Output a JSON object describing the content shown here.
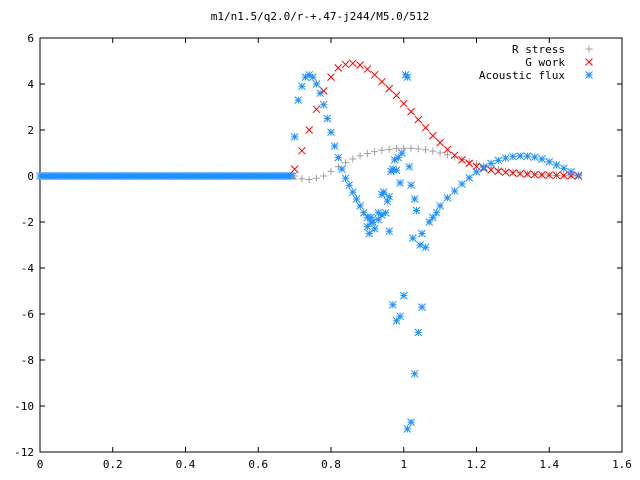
{
  "chart_data": {
    "type": "scatter",
    "title": "m1/n1.5/q2.0/r-+.47-j244/M5.0/512",
    "xlabel": "",
    "ylabel": "",
    "xlim": [
      0,
      1.6
    ],
    "ylim": [
      -12,
      6
    ],
    "x_ticks": [
      0,
      0.2,
      0.4,
      0.6,
      0.8,
      1,
      1.2,
      1.4,
      1.6
    ],
    "y_ticks": [
      -12,
      -10,
      -8,
      -6,
      -4,
      -2,
      0,
      2,
      4,
      6
    ],
    "x_tick_labels": [
      "0",
      "0.2",
      "0.4",
      "0.6",
      "0.8",
      "1",
      "1.2",
      "1.4",
      "1.6"
    ],
    "y_tick_labels": [
      "-12",
      "-10",
      "-8",
      "-6",
      "-4",
      "-2",
      "0",
      "2",
      "4",
      "6"
    ],
    "grid": false,
    "legend": "top-right",
    "series": [
      {
        "name": "R stress",
        "marker": "plus",
        "color": "#a0a0a0",
        "x": [
          0.7,
          0.72,
          0.74,
          0.76,
          0.78,
          0.8,
          0.82,
          0.84,
          0.86,
          0.88,
          0.9,
          0.92,
          0.94,
          0.96,
          0.98,
          1.0,
          1.02,
          1.04,
          1.06,
          1.08,
          1.1,
          1.12,
          1.14,
          1.16,
          1.18,
          1.2,
          1.22,
          1.24,
          1.26,
          1.28,
          1.3,
          1.32,
          1.34,
          1.36,
          1.38,
          1.4,
          1.42,
          1.44,
          1.46,
          1.48
        ],
        "y": [
          0.0,
          -0.12,
          -0.15,
          -0.1,
          0.0,
          0.2,
          0.4,
          0.58,
          0.74,
          0.88,
          0.98,
          1.06,
          1.12,
          1.16,
          1.19,
          1.2,
          1.2,
          1.18,
          1.14,
          1.08,
          1.0,
          0.92,
          0.82,
          0.72,
          0.62,
          0.52,
          0.44,
          0.36,
          0.28,
          0.22,
          0.17,
          0.13,
          0.1,
          0.07,
          0.05,
          0.03,
          0.02,
          0.01,
          0.0,
          0.0
        ]
      },
      {
        "name": "G work",
        "marker": "cross",
        "color": "#ff0000",
        "x": [
          0.7,
          0.72,
          0.74,
          0.76,
          0.78,
          0.8,
          0.82,
          0.84,
          0.86,
          0.88,
          0.9,
          0.92,
          0.94,
          0.96,
          0.98,
          1.0,
          1.02,
          1.04,
          1.06,
          1.08,
          1.1,
          1.12,
          1.14,
          1.16,
          1.18,
          1.2,
          1.22,
          1.24,
          1.26,
          1.28,
          1.3,
          1.32,
          1.34,
          1.36,
          1.38,
          1.4,
          1.42,
          1.44,
          1.46,
          1.48
        ],
        "y": [
          0.3,
          1.1,
          2.0,
          2.9,
          3.7,
          4.3,
          4.7,
          4.85,
          4.9,
          4.82,
          4.65,
          4.4,
          4.1,
          3.8,
          3.5,
          3.15,
          2.8,
          2.45,
          2.1,
          1.75,
          1.45,
          1.15,
          0.9,
          0.7,
          0.55,
          0.42,
          0.33,
          0.26,
          0.2,
          0.16,
          0.13,
          0.1,
          0.08,
          0.06,
          0.05,
          0.04,
          0.03,
          0.02,
          0.01,
          0.0
        ]
      },
      {
        "name": "Acoustic flux",
        "marker": "star",
        "color": "#1e90ff",
        "x": [
          0.7,
          0.71,
          0.72,
          0.73,
          0.74,
          0.75,
          0.76,
          0.77,
          0.78,
          0.79,
          0.8,
          0.81,
          0.82,
          0.83,
          0.84,
          0.85,
          0.86,
          0.87,
          0.88,
          0.89,
          0.9,
          0.91,
          0.92,
          0.93,
          0.94,
          0.95,
          0.96,
          0.97,
          0.98,
          0.99,
          1.0,
          1.01,
          1.02,
          1.03,
          1.04,
          1.05,
          1.06,
          1.07,
          1.08,
          1.09,
          1.1,
          1.12,
          1.14,
          1.16,
          1.18,
          1.2,
          1.22,
          1.24,
          1.26,
          1.28,
          1.3,
          1.32,
          1.34,
          1.36,
          1.38,
          1.4,
          1.42,
          1.44,
          1.46,
          1.48,
          0.9,
          0.905,
          0.91,
          0.915,
          0.93,
          0.94,
          0.945,
          0.955,
          0.96,
          0.965,
          0.97,
          0.975,
          0.98,
          0.985,
          0.99,
          0.995,
          1.005,
          1.01,
          1.015,
          1.02,
          1.025,
          1.03,
          1.035,
          1.045,
          1.05
        ],
        "y": [
          1.7,
          3.3,
          3.9,
          4.3,
          4.4,
          4.3,
          4.0,
          3.6,
          3.1,
          2.5,
          1.9,
          1.3,
          0.8,
          0.3,
          -0.1,
          -0.4,
          -0.7,
          -1.0,
          -1.3,
          -1.6,
          -1.8,
          -2.0,
          -2.3,
          -1.9,
          -1.7,
          -1.6,
          -2.4,
          -5.6,
          -6.3,
          -6.1,
          -5.2,
          -11.0,
          -10.7,
          -8.6,
          -6.8,
          -5.7,
          -3.1,
          -2.0,
          -1.8,
          -1.6,
          -1.3,
          -0.95,
          -0.65,
          -0.35,
          -0.08,
          0.18,
          0.38,
          0.55,
          0.68,
          0.78,
          0.84,
          0.87,
          0.86,
          0.82,
          0.74,
          0.62,
          0.48,
          0.33,
          0.18,
          0.03,
          -2.2,
          -2.5,
          -1.8,
          -2.0,
          -1.6,
          -0.8,
          -0.7,
          -1.1,
          -0.9,
          0.2,
          0.3,
          0.7,
          0.25,
          0.8,
          -0.3,
          1.0,
          4.4,
          4.3,
          0.4,
          -0.4,
          -2.7,
          -1.0,
          -1.5,
          -3.0,
          -2.5
        ]
      }
    ],
    "baseline_zero": {
      "series": "Acoustic flux",
      "x_start": 0,
      "x_end": 0.7,
      "y": 0
    }
  }
}
